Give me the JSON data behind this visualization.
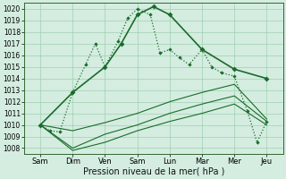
{
  "title": "Pression niveau de la mer( hPa )",
  "bg": "#d4ede0",
  "grid_color": "#9fcfb0",
  "lc": "#1a6b2a",
  "xlabels": [
    "Sam",
    "Dim",
    "Ven",
    "Sam",
    "Lun",
    "Mar",
    "Mer",
    "Jeu"
  ],
  "ylim": [
    1007.5,
    1020.5
  ],
  "yticks": [
    1008,
    1009,
    1010,
    1011,
    1012,
    1013,
    1014,
    1015,
    1016,
    1017,
    1018,
    1019,
    1020
  ],
  "line_dot_x": [
    0,
    0.3,
    0.6,
    1.0,
    1.4,
    1.7,
    2.0,
    2.4,
    2.7,
    3.0,
    3.4,
    3.7,
    4.0,
    4.3,
    4.6,
    5.0,
    5.3,
    5.6,
    6.0,
    6.4,
    6.7,
    7.0
  ],
  "line_dot_y": [
    1010.0,
    1009.5,
    1009.4,
    1012.8,
    1015.2,
    1017.0,
    1015.0,
    1017.2,
    1019.2,
    1020.0,
    1019.5,
    1016.2,
    1016.5,
    1015.8,
    1015.2,
    1016.5,
    1015.0,
    1014.5,
    1014.2,
    1011.2,
    1008.5,
    1010.3
  ],
  "line_solid_x": [
    0,
    1.0,
    2.0,
    2.5,
    3.0,
    3.5,
    4.0,
    5.0,
    6.0,
    7.0
  ],
  "line_solid_y": [
    1010.0,
    1012.8,
    1015.0,
    1017.0,
    1019.5,
    1020.2,
    1019.5,
    1016.5,
    1014.8,
    1014.0
  ],
  "line_thin1_x": [
    0,
    1.0,
    2.0,
    3.0,
    4.0,
    5.0,
    6.0,
    7.0
  ],
  "line_thin1_y": [
    1010.0,
    1009.5,
    1010.2,
    1011.0,
    1012.0,
    1012.8,
    1013.5,
    1010.5
  ],
  "line_thin2_x": [
    0,
    1.0,
    2.0,
    3.0,
    4.0,
    5.0,
    6.0,
    7.0
  ],
  "line_thin2_y": [
    1010.0,
    1008.0,
    1009.2,
    1010.0,
    1011.0,
    1011.8,
    1012.5,
    1010.3
  ],
  "line_thin3_x": [
    0,
    1.0,
    2.0,
    3.0,
    4.0,
    5.0,
    6.0,
    7.0
  ],
  "line_thin3_y": [
    1010.0,
    1007.8,
    1008.5,
    1009.5,
    1010.3,
    1011.0,
    1011.8,
    1010.0
  ]
}
